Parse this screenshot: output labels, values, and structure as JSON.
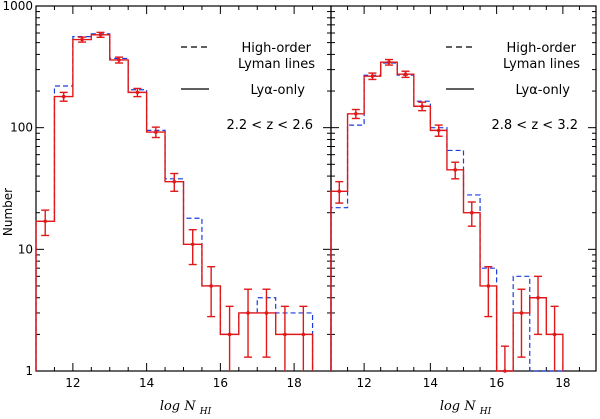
{
  "figure": {
    "ylabel": "Number",
    "xlabel_main": "log N",
    "xlabel_sub": "HI",
    "y_ticks": [
      1,
      10,
      100,
      1000
    ],
    "y_tick_labels": [
      "1",
      "10",
      "100",
      "1000"
    ],
    "x_ticks": [
      12,
      14,
      16,
      18
    ],
    "x_tick_labels": [
      "12",
      "14",
      "16",
      "18"
    ],
    "colors": {
      "lya_only": "#e01818",
      "high_order": "#1a3ce0",
      "axis": "#000000"
    }
  },
  "legend": {
    "high_order_line1": "High-order",
    "high_order_line2": "Lyman lines",
    "lya_only": "Lyα-only"
  },
  "chart_data": [
    {
      "type": "histogram",
      "panel": "left",
      "redshift_label": "2.2 < z < 2.6",
      "xlim": [
        11,
        19
      ],
      "ylim": [
        1,
        1000
      ],
      "yscale": "log",
      "bin_edges": [
        11.0,
        11.5,
        12.0,
        12.5,
        13.0,
        13.5,
        14.0,
        14.5,
        15.0,
        15.5,
        16.0,
        16.5,
        17.0,
        17.5,
        18.0,
        18.5
      ],
      "series": [
        {
          "name": "Lyα-only",
          "style": "solid",
          "values": [
            17,
            180,
            530,
            580,
            360,
            195,
            92,
            36,
            11,
            5,
            2,
            3,
            3,
            2,
            2
          ],
          "errors": [
            4,
            15,
            25,
            27,
            20,
            15,
            9,
            6,
            3.5,
            2.2,
            1.4,
            1.7,
            1.7,
            1.4,
            1.4
          ]
        },
        {
          "name": "High-order Lyman lines",
          "style": "dashed",
          "values": [
            17,
            220,
            560,
            590,
            370,
            205,
            95,
            38,
            18,
            5,
            2,
            3,
            4,
            3,
            3
          ]
        }
      ]
    },
    {
      "type": "histogram",
      "panel": "right",
      "redshift_label": "2.8 < z < 3.2",
      "xlim": [
        11,
        19
      ],
      "ylim": [
        1,
        1000
      ],
      "yscale": "log",
      "bin_edges": [
        11.0,
        11.5,
        12.0,
        12.5,
        13.0,
        13.5,
        14.0,
        14.5,
        15.0,
        15.5,
        16.0,
        16.5,
        17.0,
        17.5,
        18.0
      ],
      "series": [
        {
          "name": "Lyα-only",
          "style": "solid",
          "values": [
            30,
            130,
            265,
            345,
            275,
            150,
            95,
            45,
            20,
            5,
            1,
            3,
            4,
            2
          ],
          "errors": [
            6,
            11,
            16,
            18,
            16,
            12,
            10,
            7,
            4.5,
            2.2,
            0.6,
            1.7,
            2,
            1.4
          ]
        },
        {
          "name": "High-order Lyman lines",
          "style": "dashed",
          "values": [
            22,
            105,
            270,
            340,
            270,
            165,
            100,
            65,
            28,
            7,
            1,
            6,
            1,
            1
          ]
        }
      ]
    }
  ]
}
